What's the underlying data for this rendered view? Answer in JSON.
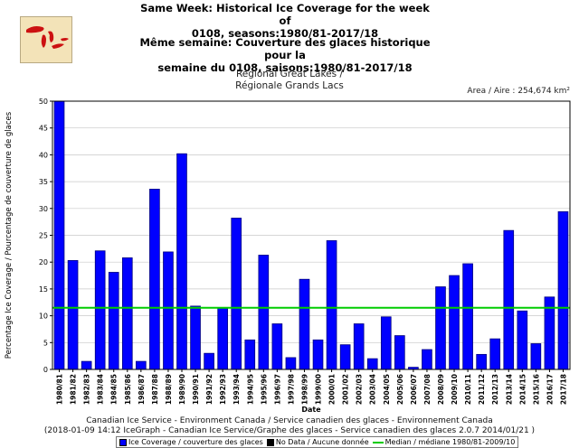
{
  "header": {
    "title_en_line1": "Same Week: Historical Ice Coverage for the week of",
    "title_en_line2": "0108, seasons:1980/81-2017/18",
    "title_fr_line1": "Même semaine: Couverture des glaces historique pour la",
    "title_fr_line2": "semaine du 0108, saisons:1980/81-2017/18",
    "region_line1": "Regional Great Lakes /",
    "region_line2": "Régionale Grands Lacs",
    "area": "Area / Aire : 254,674 km²"
  },
  "map_icon": "great-lakes-map-icon",
  "footer": {
    "line1": "Canadian Ice Service - Environment Canada / Service canadien des glaces - Environnement Canada",
    "line2": "(2018-01-09 14:12 IceGraph - Canadian Ice Service/Graphe des glaces - Service canadien des glaces 2.0.7 2014/01/21 )"
  },
  "legend": {
    "ice": "Ice Coverage / couverture des glaces",
    "nodata": "No Data / Aucune donnée",
    "median": "Median / médiane 1980/81-2009/10"
  },
  "colors": {
    "bar": "#0000ff",
    "bar_stroke": "#000080",
    "median": "#00cc00",
    "grid": "#c8c8c8",
    "nodata": "#000000"
  },
  "chart_data": {
    "type": "bar",
    "xlabel": "Date",
    "ylabel": "Percentage Ice Coverage / Pourcentage de couverture de glaces",
    "ylim": [
      0,
      50
    ],
    "yticks": [
      0,
      5,
      10,
      15,
      20,
      25,
      30,
      35,
      40,
      45,
      50
    ],
    "grid": true,
    "median": 11.5,
    "categories": [
      "1980/81",
      "1981/82",
      "1982/83",
      "1983/84",
      "1984/85",
      "1985/86",
      "1986/87",
      "1987/88",
      "1988/89",
      "1989/90",
      "1990/91",
      "1991/92",
      "1992/93",
      "1993/94",
      "1994/95",
      "1995/96",
      "1996/97",
      "1997/98",
      "1998/99",
      "1999/00",
      "2000/01",
      "2001/02",
      "2002/03",
      "2003/04",
      "2004/05",
      "2005/06",
      "2006/07",
      "2007/08",
      "2008/09",
      "2009/10",
      "2010/11",
      "2011/12",
      "2012/13",
      "2013/14",
      "2014/15",
      "2015/16",
      "2016/17",
      "2017/18"
    ],
    "series": [
      {
        "name": "Ice Coverage / couverture des glaces",
        "values": [
          50,
          20.3,
          1.5,
          22.1,
          18.1,
          20.8,
          1.5,
          33.6,
          21.9,
          40.2,
          11.8,
          3.0,
          11.5,
          28.2,
          5.5,
          21.3,
          8.5,
          2.2,
          16.8,
          5.5,
          24.0,
          4.6,
          8.5,
          2.0,
          9.8,
          6.3,
          0.4,
          3.7,
          15.4,
          17.5,
          19.7,
          2.8,
          5.7,
          25.9,
          10.9,
          4.8,
          13.5,
          29.4
        ]
      }
    ]
  }
}
